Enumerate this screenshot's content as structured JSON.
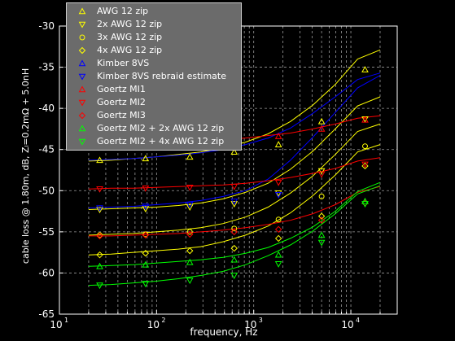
{
  "chart_data": {
    "type": "line",
    "title": "",
    "xlabel": "frequency, Hz",
    "ylabel": "cable loss @ 1.80m, dB, Zₗ=0.2mΩ + 5.0nH",
    "xscale": "log",
    "xlim": [
      10,
      30000
    ],
    "ylim": [
      -65,
      -30
    ],
    "grid": true,
    "legend_position": "top-left",
    "x_tick_labels": [
      "10",
      "10",
      "10",
      "10",
      "10"
    ],
    "x_tick_exponents": [
      "1",
      "2",
      "3",
      "4"
    ],
    "y_ticks": [
      -65,
      -60,
      -55,
      -50,
      -45,
      -40,
      -35,
      -30
    ],
    "series": [
      {
        "name": "AWG 12 zip",
        "color": "#ffff00",
        "marker": "triangle-up",
        "markerFreqs": [
          26,
          77,
          220,
          630,
          1800,
          5000,
          14000
        ],
        "markerValues": [
          -46.3,
          -46.1,
          -45.9,
          -45.3,
          -44.4,
          -41.6,
          -35.3
        ],
        "curveValues": [
          -46.4,
          -46.3,
          -46.1,
          -45.9,
          -45.6,
          -45.3,
          -44.8,
          -44.1,
          -43.1,
          -41.6,
          -39.6,
          -37.1,
          -34.0,
          -32.9
        ]
      },
      {
        "name": "2x AWG 12 zip",
        "color": "#ffff00",
        "marker": "triangle-down",
        "markerFreqs": [
          26,
          77,
          220,
          630,
          1800,
          5000,
          14000
        ],
        "markerValues": [
          -52.3,
          -52.2,
          -52.0,
          -51.6,
          -50.3,
          -47.6,
          -41.3
        ],
        "curveValues": [
          -52.3,
          -52.2,
          -52.1,
          -52.0,
          -51.8,
          -51.5,
          -51.0,
          -50.2,
          -49.1,
          -47.4,
          -45.2,
          -42.5,
          -39.7,
          -38.6
        ]
      },
      {
        "name": "3x AWG 12 zip",
        "color": "#ffff00",
        "marker": "circle",
        "markerFreqs": [
          26,
          77,
          220,
          630,
          1800,
          5000,
          14000
        ],
        "markerValues": [
          -55.4,
          -55.3,
          -55.0,
          -54.6,
          -53.5,
          -50.7,
          -44.6
        ],
        "curveValues": [
          -55.4,
          -55.3,
          -55.2,
          -55.0,
          -54.8,
          -54.5,
          -54.0,
          -53.2,
          -52.0,
          -50.3,
          -48.2,
          -45.6,
          -42.8,
          -41.9
        ]
      },
      {
        "name": "4x AWG 12 zip",
        "color": "#ffff00",
        "marker": "diamond",
        "markerFreqs": [
          26,
          77,
          220,
          630,
          1800,
          5000,
          14000
        ],
        "markerValues": [
          -57.8,
          -57.6,
          -57.3,
          -57.0,
          -55.8,
          -53.1,
          -47.0
        ],
        "curveValues": [
          -57.8,
          -57.7,
          -57.5,
          -57.3,
          -57.1,
          -56.8,
          -56.2,
          -55.4,
          -54.3,
          -52.7,
          -50.6,
          -48.1,
          -45.3,
          -44.4
        ]
      },
      {
        "name": "Kimber 8VS",
        "color": "#0000ff",
        "marker": "triangle-up",
        "markerFreqs": [],
        "markerValues": [],
        "curveValues": [
          -46.3,
          -46.2,
          -46.1,
          -45.9,
          -45.7,
          -45.4,
          -45.0,
          -44.4,
          -43.6,
          -42.4,
          -40.6,
          -38.6,
          -36.5,
          -35.7
        ]
      },
      {
        "name": "Kimber 8VS rebraid estimate",
        "color": "#0000ff",
        "marker": "triangle-down",
        "markerFreqs": [
          26,
          77,
          220,
          630,
          1800
        ],
        "markerValues": [
          -52.1,
          -51.9,
          -51.7,
          -51.3,
          -50.5
        ],
        "curveValues": [
          -52.1,
          -52.0,
          -51.9,
          -51.7,
          -51.5,
          -51.2,
          -50.7,
          -50.0,
          -48.6,
          -46.3,
          -43.5,
          -40.5,
          -37.5,
          -36.0
        ]
      },
      {
        "name": "Goertz MI1",
        "color": "#ff0000",
        "marker": "triangle-up",
        "markerFreqs": [
          1800,
          5000,
          14000
        ],
        "markerValues": [
          -43.4,
          -42.5,
          -41.4
        ],
        "curveValues": [
          -44.1,
          -44.1,
          -44.0,
          -44.0,
          -44.0,
          -43.9,
          -43.8,
          -43.6,
          -43.3,
          -43.0,
          -42.5,
          -41.9,
          -41.2,
          -40.9
        ]
      },
      {
        "name": "Goertz MI2",
        "color": "#ff0000",
        "marker": "triangle-down",
        "markerFreqs": [
          26,
          77,
          220,
          630,
          1800,
          5000,
          14000
        ],
        "markerValues": [
          -49.8,
          -49.7,
          -49.6,
          -49.5,
          -49.0,
          -48.0,
          -46.8
        ],
        "curveValues": [
          -49.8,
          -49.7,
          -49.7,
          -49.6,
          -49.5,
          -49.4,
          -49.3,
          -49.1,
          -48.8,
          -48.4,
          -47.9,
          -47.3,
          -46.4,
          -46.0
        ]
      },
      {
        "name": "Goertz MI3",
        "color": "#ff0000",
        "marker": "diamond",
        "markerFreqs": [
          26,
          77,
          220,
          630,
          1800,
          5000,
          14000
        ],
        "markerValues": [
          -55.5,
          -55.4,
          -55.3,
          -55.0,
          -54.7,
          -53.6,
          -51.5
        ],
        "curveValues": [
          -55.5,
          -55.5,
          -55.4,
          -55.3,
          -55.2,
          -55.0,
          -54.8,
          -54.5,
          -54.1,
          -53.6,
          -52.8,
          -51.7,
          -50.2,
          -49.5
        ]
      },
      {
        "name": "Goertz MI2 + 2x AWG 12 zip",
        "color": "#00ff00",
        "marker": "triangle-up",
        "markerFreqs": [
          26,
          77,
          220,
          630,
          1800,
          5000,
          14000
        ],
        "markerValues": [
          -59.2,
          -59.0,
          -58.7,
          -58.4,
          -57.8,
          -55.4,
          -51.3
        ],
        "curveValues": [
          -59.2,
          -59.1,
          -59.0,
          -58.8,
          -58.6,
          -58.4,
          -58.1,
          -57.6,
          -56.9,
          -55.8,
          -54.4,
          -52.5,
          -50.1,
          -49.0
        ]
      },
      {
        "name": "Goertz MI2 + 4x AWG 12 zip",
        "color": "#00ff00",
        "marker": "triangle-down",
        "markerFreqs": [
          26,
          77,
          220,
          630,
          1800,
          5000,
          14000
        ],
        "markerValues": [
          -61.5,
          -61.3,
          -60.9,
          -60.3,
          -58.9,
          -56.3,
          -51.6
        ],
        "curveValues": [
          -61.5,
          -61.4,
          -61.2,
          -61.0,
          -60.7,
          -60.3,
          -59.8,
          -59.0,
          -57.9,
          -56.6,
          -54.9,
          -52.8,
          -50.4,
          -49.4
        ]
      }
    ]
  }
}
